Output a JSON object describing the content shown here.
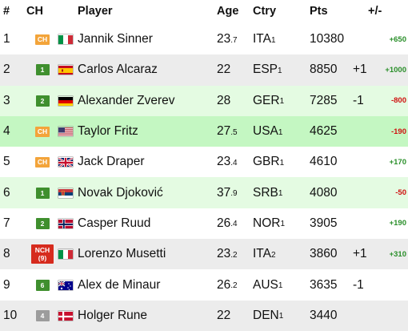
{
  "header": {
    "rank": "#",
    "ch": "CH",
    "player": "Player",
    "age": "Age",
    "ctry": "Ctry",
    "pts": "Pts",
    "change": "+/-"
  },
  "colors": {
    "row_white": "#ffffff",
    "row_grey": "#ececec",
    "row_green_light": "#e4fbe2",
    "row_green": "#c4f7c2",
    "badge_ch": "#f3a43a",
    "badge_num": "#3f8f2e",
    "badge_grey": "#9c9c9c",
    "badge_nch": "#d62b1e",
    "change_positive": "#2a8f2a",
    "change_negative": "#d01010"
  },
  "rows": [
    {
      "rank": "1",
      "ch": "CH",
      "flag_icon": "italy-flag-icon",
      "player": "Jannik Sinner",
      "age_main": "23",
      "age_sub": ".7",
      "ctry": "ITA",
      "ctry_sub": "1",
      "pts": "10380",
      "move": "",
      "change": "+650"
    },
    {
      "rank": "2",
      "ch": "1",
      "flag_icon": "spain-flag-icon",
      "player": "Carlos Alcaraz",
      "age_main": "22",
      "age_sub": "",
      "ctry": "ESP",
      "ctry_sub": "1",
      "pts": "8850",
      "move": "+1",
      "change": "+1000"
    },
    {
      "rank": "3",
      "ch": "2",
      "flag_icon": "germany-flag-icon",
      "player": "Alexander Zverev",
      "age_main": "28",
      "age_sub": "",
      "ctry": "GER",
      "ctry_sub": "1",
      "pts": "7285",
      "move": "-1",
      "change": "-800"
    },
    {
      "rank": "4",
      "ch": "CH",
      "flag_icon": "usa-flag-icon",
      "player": "Taylor Fritz",
      "age_main": "27",
      "age_sub": ".5",
      "ctry": "USA",
      "ctry_sub": "1",
      "pts": "4625",
      "move": "",
      "change": "-190"
    },
    {
      "rank": "5",
      "ch": "CH",
      "flag_icon": "uk-flag-icon",
      "player": "Jack Draper",
      "age_main": "23",
      "age_sub": ".4",
      "ctry": "GBR",
      "ctry_sub": "1",
      "pts": "4610",
      "move": "",
      "change": "+170"
    },
    {
      "rank": "6",
      "ch": "1",
      "flag_icon": "serbia-flag-icon",
      "player": "Novak Djoković",
      "age_main": "37",
      "age_sub": ".9",
      "ctry": "SRB",
      "ctry_sub": "1",
      "pts": "4080",
      "move": "",
      "change": "-50"
    },
    {
      "rank": "7",
      "ch": "2",
      "flag_icon": "norway-flag-icon",
      "player": "Casper Ruud",
      "age_main": "26",
      "age_sub": ".4",
      "ctry": "NOR",
      "ctry_sub": "1",
      "pts": "3905",
      "move": "",
      "change": "+190"
    },
    {
      "rank": "8",
      "ch": "NCH",
      "ch_sub": "(9)",
      "flag_icon": "italy-flag-icon",
      "player": "Lorenzo Musetti",
      "age_main": "23",
      "age_sub": ".2",
      "ctry": "ITA",
      "ctry_sub": "2",
      "pts": "3860",
      "move": "+1",
      "change": "+310"
    },
    {
      "rank": "9",
      "ch": "6",
      "flag_icon": "australia-flag-icon",
      "player": "Alex de Minaur",
      "age_main": "26",
      "age_sub": ".2",
      "ctry": "AUS",
      "ctry_sub": "1",
      "pts": "3635",
      "move": "-1",
      "change": ""
    },
    {
      "rank": "10",
      "ch": "4",
      "flag_icon": "denmark-flag-icon",
      "player": "Holger Rune",
      "age_main": "22",
      "age_sub": "",
      "ctry": "DEN",
      "ctry_sub": "1",
      "pts": "3440",
      "move": "",
      "change": ""
    }
  ]
}
